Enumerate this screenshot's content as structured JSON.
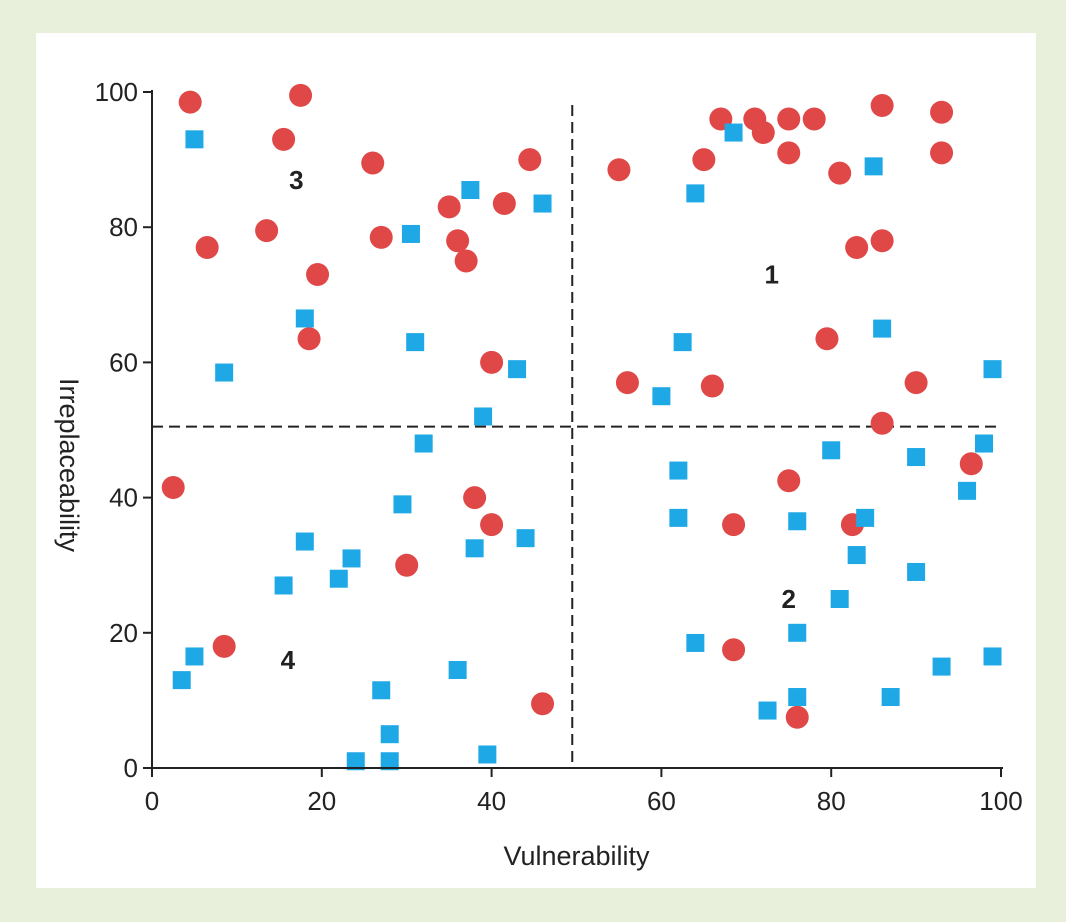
{
  "chart_data": {
    "type": "scatter",
    "title": "",
    "xlabel": "Vulnerability",
    "ylabel": "Irreplaceability",
    "xlim": [
      0,
      100
    ],
    "ylim": [
      0,
      100
    ],
    "xticks": [
      "0",
      "20",
      "40",
      "60",
      "80",
      "100"
    ],
    "yticks": [
      "0",
      "20",
      "40",
      "60",
      "80",
      "100"
    ],
    "grid": false,
    "reference_lines": {
      "x": 49.5,
      "y": 50.5,
      "style": "dashed"
    },
    "quadrant_labels": [
      {
        "text": "1",
        "x": 73,
        "y": 73
      },
      {
        "text": "2",
        "x": 75,
        "y": 25
      },
      {
        "text": "3",
        "x": 17,
        "y": 87
      },
      {
        "text": "4",
        "x": 16,
        "y": 16
      }
    ],
    "series": [
      {
        "marker": "circle",
        "color": "#e04848",
        "points": [
          [
            4.5,
            98.5
          ],
          [
            17.5,
            99.5
          ],
          [
            15.5,
            93
          ],
          [
            26,
            89.5
          ],
          [
            44.5,
            90
          ],
          [
            6.5,
            77
          ],
          [
            13.5,
            79.5
          ],
          [
            27,
            78.5
          ],
          [
            35,
            83
          ],
          [
            41.5,
            83.5
          ],
          [
            36,
            78
          ],
          [
            37,
            75
          ],
          [
            19.5,
            73
          ],
          [
            18.5,
            63.5
          ],
          [
            40,
            60
          ],
          [
            67,
            96
          ],
          [
            71,
            96
          ],
          [
            72,
            94
          ],
          [
            75,
            96
          ],
          [
            78,
            96
          ],
          [
            86,
            98
          ],
          [
            93,
            97
          ],
          [
            75,
            91
          ],
          [
            93,
            91
          ],
          [
            65,
            90
          ],
          [
            55,
            88.5
          ],
          [
            81,
            88
          ],
          [
            83,
            77
          ],
          [
            86,
            78
          ],
          [
            56,
            57
          ],
          [
            66,
            56.5
          ],
          [
            79.5,
            63.5
          ],
          [
            90,
            57
          ],
          [
            86,
            51
          ],
          [
            2.5,
            41.5
          ],
          [
            38,
            40
          ],
          [
            40,
            36
          ],
          [
            30,
            30
          ],
          [
            8.5,
            18
          ],
          [
            46,
            9.5
          ],
          [
            68.5,
            36
          ],
          [
            75,
            42.5
          ],
          [
            82.5,
            36
          ],
          [
            96.5,
            45
          ],
          [
            68.5,
            17.5
          ],
          [
            76,
            7.5
          ]
        ]
      },
      {
        "marker": "square",
        "color": "#1fa8e6",
        "points": [
          [
            5,
            93
          ],
          [
            37.5,
            85.5
          ],
          [
            46,
            83.5
          ],
          [
            30.5,
            79
          ],
          [
            18,
            66.5
          ],
          [
            31,
            63
          ],
          [
            8.5,
            58.5
          ],
          [
            43,
            59
          ],
          [
            39,
            52
          ],
          [
            64,
            85
          ],
          [
            68.5,
            94
          ],
          [
            85,
            89
          ],
          [
            62.5,
            63
          ],
          [
            86,
            65
          ],
          [
            60,
            55
          ],
          [
            99,
            59
          ],
          [
            32,
            48
          ],
          [
            29.5,
            39
          ],
          [
            18,
            33.5
          ],
          [
            23.5,
            31
          ],
          [
            22,
            28
          ],
          [
            15.5,
            27
          ],
          [
            38,
            32.5
          ],
          [
            44,
            34
          ],
          [
            5,
            16.5
          ],
          [
            3.5,
            13
          ],
          [
            36,
            14.5
          ],
          [
            27,
            11.5
          ],
          [
            28,
            5
          ],
          [
            24,
            1
          ],
          [
            28,
            1
          ],
          [
            39.5,
            2
          ],
          [
            62,
            44
          ],
          [
            62,
            37
          ],
          [
            80,
            47
          ],
          [
            90,
            46
          ],
          [
            98,
            48
          ],
          [
            96,
            41
          ],
          [
            76,
            36.5
          ],
          [
            84,
            37
          ],
          [
            83,
            31.5
          ],
          [
            81,
            25
          ],
          [
            90,
            29
          ],
          [
            64,
            18.5
          ],
          [
            76,
            20
          ],
          [
            99,
            16.5
          ],
          [
            93,
            15
          ],
          [
            72.5,
            8.5
          ],
          [
            76,
            10.5
          ],
          [
            87,
            10.5
          ]
        ]
      }
    ]
  }
}
